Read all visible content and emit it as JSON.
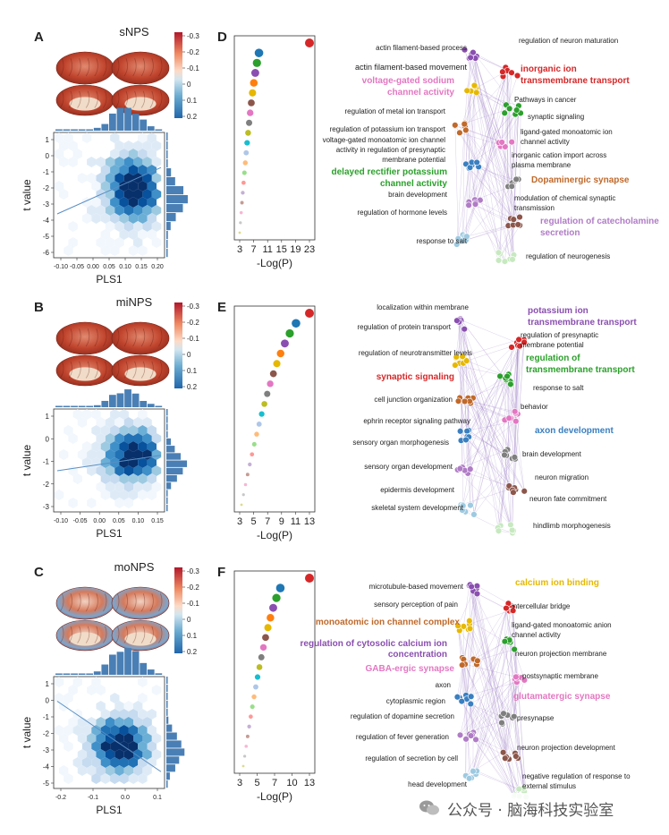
{
  "panels": [
    {
      "letter": "A",
      "title": "sNPS",
      "colorbar_ticks": [
        "-0.3",
        "-0.2",
        "-0.1",
        "0",
        "0.1",
        "0.2"
      ],
      "scatter_x_ticks": [
        "-0.10",
        "-0.05",
        "0.00",
        "0.05",
        "0.10",
        "0.15",
        "0.20"
      ],
      "scatter_y_ticks": [
        "1",
        "0",
        "-1",
        "-2",
        "-3",
        "-4",
        "-5",
        "-6"
      ],
      "xlabel": "PLS1",
      "ylabel": "t value",
      "enrich_x_ticks": [
        "3",
        "7",
        "11",
        "15",
        "19",
        "23"
      ],
      "enrich_xlabel": "-Log(P)",
      "network_labels": [
        {
          "text": "actin filament-based process",
          "x": 522,
          "y": 56,
          "color": "#222",
          "bold": false,
          "anchor": "end",
          "size": 8
        },
        {
          "text": "regulation of neuron maturation",
          "x": 580,
          "y": 48,
          "color": "#222",
          "bold": false,
          "anchor": "start",
          "size": 8
        },
        {
          "text": "actin filament-based movement",
          "x": 522,
          "y": 78,
          "color": "#222",
          "bold": false,
          "anchor": "end",
          "size": 9
        },
        {
          "text": "inorganic ion",
          "x": 582,
          "y": 80,
          "color": "#d62728",
          "bold": true,
          "anchor": "start",
          "size": 10
        },
        {
          "text": "transmembrane transport",
          "x": 582,
          "y": 93,
          "color": "#d62728",
          "bold": true,
          "anchor": "start",
          "size": 10
        },
        {
          "text": "voltage-gated sodium",
          "x": 508,
          "y": 93,
          "color": "#e377c2",
          "bold": true,
          "anchor": "end",
          "size": 10
        },
        {
          "text": "channel activity",
          "x": 508,
          "y": 106,
          "color": "#e377c2",
          "bold": true,
          "anchor": "end",
          "size": 10
        },
        {
          "text": "Pathways in cancer",
          "x": 575,
          "y": 114,
          "color": "#222",
          "bold": false,
          "anchor": "start",
          "size": 8
        },
        {
          "text": "regulation of metal ion transport",
          "x": 498,
          "y": 127,
          "color": "#222",
          "bold": false,
          "anchor": "end",
          "size": 8
        },
        {
          "text": "synaptic signaling",
          "x": 590,
          "y": 133,
          "color": "#222",
          "bold": false,
          "anchor": "start",
          "size": 8
        },
        {
          "text": "regulation of potassium ion transport",
          "x": 498,
          "y": 147,
          "color": "#222",
          "bold": false,
          "anchor": "end",
          "size": 8
        },
        {
          "text": "ligand-gated monoatomic ion",
          "x": 582,
          "y": 150,
          "color": "#222",
          "bold": false,
          "anchor": "start",
          "size": 8
        },
        {
          "text": "voltage-gated monoatomic ion channel",
          "x": 498,
          "y": 159,
          "color": "#222",
          "bold": false,
          "anchor": "end",
          "size": 8
        },
        {
          "text": "channel activity",
          "x": 582,
          "y": 161,
          "color": "#222",
          "bold": false,
          "anchor": "start",
          "size": 8
        },
        {
          "text": "activity in regulation of presynaptic",
          "x": 498,
          "y": 170,
          "color": "#222",
          "bold": false,
          "anchor": "end",
          "size": 8
        },
        {
          "text": "membrane potential",
          "x": 498,
          "y": 181,
          "color": "#222",
          "bold": false,
          "anchor": "end",
          "size": 8
        },
        {
          "text": "inorganic cation import across",
          "x": 572,
          "y": 176,
          "color": "#222",
          "bold": false,
          "anchor": "start",
          "size": 8
        },
        {
          "text": "plasma membrane",
          "x": 572,
          "y": 187,
          "color": "#222",
          "bold": false,
          "anchor": "start",
          "size": 8
        },
        {
          "text": "delayed rectifier potassium",
          "x": 500,
          "y": 195,
          "color": "#2ca02c",
          "bold": true,
          "anchor": "end",
          "size": 10
        },
        {
          "text": "channel activity",
          "x": 500,
          "y": 208,
          "color": "#2ca02c",
          "bold": true,
          "anchor": "end",
          "size": 10
        },
        {
          "text": "Dopaminergic synapse",
          "x": 594,
          "y": 204,
          "color": "#c0692a",
          "bold": true,
          "anchor": "start",
          "size": 10
        },
        {
          "text": "brain development",
          "x": 500,
          "y": 220,
          "color": "#222",
          "bold": false,
          "anchor": "end",
          "size": 8
        },
        {
          "text": "modulation of chemical synaptic",
          "x": 575,
          "y": 224,
          "color": "#222",
          "bold": false,
          "anchor": "start",
          "size": 8
        },
        {
          "text": "transmission",
          "x": 575,
          "y": 235,
          "color": "#222",
          "bold": false,
          "anchor": "start",
          "size": 8
        },
        {
          "text": "regulation of hormone levels",
          "x": 500,
          "y": 240,
          "color": "#222",
          "bold": false,
          "anchor": "end",
          "size": 8
        },
        {
          "text": "regulation of catecholamine",
          "x": 604,
          "y": 250,
          "color": "#b07cc6",
          "bold": true,
          "anchor": "start",
          "size": 10
        },
        {
          "text": "secretion",
          "x": 604,
          "y": 263,
          "color": "#b07cc6",
          "bold": true,
          "anchor": "start",
          "size": 10
        },
        {
          "text": "response to salt",
          "x": 522,
          "y": 272,
          "color": "#222",
          "bold": false,
          "anchor": "end",
          "size": 8
        },
        {
          "text": "regulation of neurogenesis",
          "x": 588,
          "y": 289,
          "color": "#222",
          "bold": false,
          "anchor": "start",
          "size": 8
        }
      ]
    },
    {
      "letter": "B",
      "title": "miNPS",
      "colorbar_ticks": [
        "-0.3",
        "-0.2",
        "-0.1",
        "0",
        "0.1",
        "0.2"
      ],
      "scatter_x_ticks": [
        "-0.10",
        "-0.05",
        "0.00",
        "0.05",
        "0.10",
        "0.15"
      ],
      "scatter_y_ticks": [
        "1",
        "0",
        "-1",
        "-2",
        "-3"
      ],
      "xlabel": "PLS1",
      "ylabel": "t value",
      "enrich_x_ticks": [
        "3",
        "5",
        "7",
        "9",
        "11",
        "13"
      ],
      "enrich_xlabel": "-Log(P)",
      "network_labels": [
        {
          "text": "localization within membrane",
          "x": 524,
          "y": 346,
          "color": "#222",
          "bold": false,
          "anchor": "end",
          "size": 8
        },
        {
          "text": "potassium ion",
          "x": 590,
          "y": 350,
          "color": "#8a4fb0",
          "bold": true,
          "anchor": "start",
          "size": 10
        },
        {
          "text": "transmembrane transport",
          "x": 590,
          "y": 363,
          "color": "#8a4fb0",
          "bold": true,
          "anchor": "start",
          "size": 10
        },
        {
          "text": "regulation of protein transport",
          "x": 504,
          "y": 368,
          "color": "#222",
          "bold": false,
          "anchor": "end",
          "size": 8
        },
        {
          "text": "regulation of presynaptic",
          "x": 582,
          "y": 377,
          "color": "#222",
          "bold": false,
          "anchor": "start",
          "size": 8
        },
        {
          "text": "membrane potential",
          "x": 582,
          "y": 388,
          "color": "#222",
          "bold": false,
          "anchor": "start",
          "size": 8
        },
        {
          "text": "regulation of neurotransmitter levels",
          "x": 528,
          "y": 397,
          "color": "#222",
          "bold": false,
          "anchor": "end",
          "size": 8
        },
        {
          "text": "regulation of",
          "x": 588,
          "y": 403,
          "color": "#2ca02c",
          "bold": true,
          "anchor": "start",
          "size": 10
        },
        {
          "text": "transmembrane transport",
          "x": 588,
          "y": 416,
          "color": "#2ca02c",
          "bold": true,
          "anchor": "start",
          "size": 10
        },
        {
          "text": "synaptic signaling",
          "x": 508,
          "y": 424,
          "color": "#d62728",
          "bold": true,
          "anchor": "end",
          "size": 10
        },
        {
          "text": "response to salt",
          "x": 596,
          "y": 436,
          "color": "#222",
          "bold": false,
          "anchor": "start",
          "size": 8
        },
        {
          "text": "cell junction organization",
          "x": 506,
          "y": 449,
          "color": "#222",
          "bold": false,
          "anchor": "end",
          "size": 8
        },
        {
          "text": "behavior",
          "x": 582,
          "y": 457,
          "color": "#222",
          "bold": false,
          "anchor": "start",
          "size": 8
        },
        {
          "text": "ephrin receptor signaling pathway",
          "x": 526,
          "y": 473,
          "color": "#222",
          "bold": false,
          "anchor": "end",
          "size": 8
        },
        {
          "text": "axon development",
          "x": 598,
          "y": 484,
          "color": "#3a7fc1",
          "bold": true,
          "anchor": "start",
          "size": 10
        },
        {
          "text": "sensory organ morphogenesis",
          "x": 502,
          "y": 497,
          "color": "#222",
          "bold": false,
          "anchor": "end",
          "size": 8
        },
        {
          "text": "brain development",
          "x": 584,
          "y": 510,
          "color": "#222",
          "bold": false,
          "anchor": "start",
          "size": 8
        },
        {
          "text": "sensory organ development",
          "x": 506,
          "y": 524,
          "color": "#222",
          "bold": false,
          "anchor": "end",
          "size": 8
        },
        {
          "text": "neuron migration",
          "x": 598,
          "y": 536,
          "color": "#222",
          "bold": false,
          "anchor": "start",
          "size": 8
        },
        {
          "text": "epidermis development",
          "x": 508,
          "y": 550,
          "color": "#222",
          "bold": false,
          "anchor": "end",
          "size": 8
        },
        {
          "text": "neuron fate commitment",
          "x": 592,
          "y": 560,
          "color": "#222",
          "bold": false,
          "anchor": "start",
          "size": 8
        },
        {
          "text": "skeletal system development",
          "x": 518,
          "y": 570,
          "color": "#222",
          "bold": false,
          "anchor": "end",
          "size": 8
        },
        {
          "text": "hindlimb morphogenesis",
          "x": 596,
          "y": 590,
          "color": "#222",
          "bold": false,
          "anchor": "start",
          "size": 8
        }
      ]
    },
    {
      "letter": "C",
      "title": "moNPS",
      "colorbar_ticks": [
        "-0.3",
        "-0.2",
        "-0.1",
        "0",
        "0.1",
        "0.2"
      ],
      "scatter_x_ticks": [
        "-0.2",
        "-0.1",
        "0.0",
        "0.1"
      ],
      "scatter_y_ticks": [
        "1",
        "0",
        "-1",
        "-2",
        "-3",
        "-4",
        "-5"
      ],
      "xlabel": "PLS1",
      "ylabel": "t value",
      "enrich_x_ticks": [
        "3",
        "5",
        "7",
        "10",
        "13"
      ],
      "enrich_xlabel": "-Log(P)",
      "network_labels": [
        {
          "text": "microtubule-based movement",
          "x": 518,
          "y": 658,
          "color": "#222",
          "bold": false,
          "anchor": "end",
          "size": 8
        },
        {
          "text": "calcium ion binding",
          "x": 576,
          "y": 654,
          "color": "#e6b800",
          "bold": true,
          "anchor": "start",
          "size": 10
        },
        {
          "text": "sensory perception of pain",
          "x": 512,
          "y": 678,
          "color": "#222",
          "bold": false,
          "anchor": "end",
          "size": 8
        },
        {
          "text": "intercellular bridge",
          "x": 572,
          "y": 680,
          "color": "#222",
          "bold": false,
          "anchor": "start",
          "size": 8
        },
        {
          "text": "monoatomic ion channel complex",
          "x": 514,
          "y": 698,
          "color": "#c0692a",
          "bold": true,
          "anchor": "end",
          "size": 10
        },
        {
          "text": "ligand-gated monoatomic anion",
          "x": 572,
          "y": 701,
          "color": "#222",
          "bold": false,
          "anchor": "start",
          "size": 8
        },
        {
          "text": "channel activity",
          "x": 572,
          "y": 712,
          "color": "#222",
          "bold": false,
          "anchor": "start",
          "size": 8
        },
        {
          "text": "regulation of cytosolic calcium ion",
          "x": 500,
          "y": 722,
          "color": "#8a4fb0",
          "bold": true,
          "anchor": "end",
          "size": 10
        },
        {
          "text": "concentration",
          "x": 500,
          "y": 734,
          "color": "#8a4fb0",
          "bold": true,
          "anchor": "end",
          "size": 10
        },
        {
          "text": "neuron projection membrane",
          "x": 576,
          "y": 733,
          "color": "#222",
          "bold": false,
          "anchor": "start",
          "size": 8
        },
        {
          "text": "GABA-ergic synapse",
          "x": 508,
          "y": 750,
          "color": "#e377c2",
          "bold": true,
          "anchor": "end",
          "size": 10
        },
        {
          "text": "postsynaptic membrane",
          "x": 584,
          "y": 758,
          "color": "#222",
          "bold": false,
          "anchor": "start",
          "size": 8
        },
        {
          "text": "axon",
          "x": 504,
          "y": 768,
          "color": "#222",
          "bold": false,
          "anchor": "end",
          "size": 8
        },
        {
          "text": "glutamatergic synapse",
          "x": 574,
          "y": 781,
          "color": "#e377c2",
          "bold": true,
          "anchor": "start",
          "size": 10
        },
        {
          "text": "cytoplasmic region",
          "x": 498,
          "y": 786,
          "color": "#222",
          "bold": false,
          "anchor": "end",
          "size": 8
        },
        {
          "text": "regulation of dopamine secretion",
          "x": 508,
          "y": 803,
          "color": "#222",
          "bold": false,
          "anchor": "end",
          "size": 8
        },
        {
          "text": "presynapse",
          "x": 578,
          "y": 805,
          "color": "#222",
          "bold": false,
          "anchor": "start",
          "size": 8
        },
        {
          "text": "regulation of fever generation",
          "x": 502,
          "y": 826,
          "color": "#222",
          "bold": false,
          "anchor": "end",
          "size": 8
        },
        {
          "text": "neuron projection development",
          "x": 578,
          "y": 838,
          "color": "#222",
          "bold": false,
          "anchor": "start",
          "size": 8
        },
        {
          "text": "regulation of secretion by cell",
          "x": 512,
          "y": 850,
          "color": "#222",
          "bold": false,
          "anchor": "end",
          "size": 8
        },
        {
          "text": "negative regulation of response to",
          "x": 584,
          "y": 870,
          "color": "#222",
          "bold": false,
          "anchor": "start",
          "size": 8
        },
        {
          "text": "external stimulus",
          "x": 584,
          "y": 881,
          "color": "#222",
          "bold": false,
          "anchor": "start",
          "size": 8
        },
        {
          "text": "head development",
          "x": 522,
          "y": 879,
          "color": "#222",
          "bold": false,
          "anchor": "end",
          "size": 8
        }
      ]
    }
  ],
  "right_letters": [
    "D",
    "E",
    "F"
  ],
  "watermark": "公众号 · 脑海科技实验室",
  "colors": {
    "hex_dark": "#08306b",
    "hex_light": "#deebf7",
    "edge": "#9b7cc4",
    "line": "#5a8fc4",
    "hist": "#4a7fb5"
  }
}
